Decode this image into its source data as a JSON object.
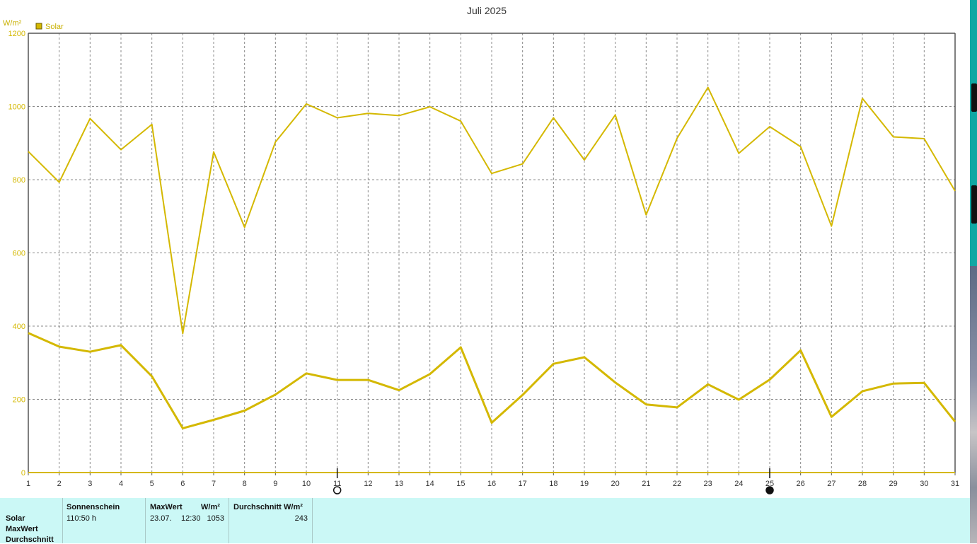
{
  "chart_data": {
    "type": "line",
    "title": "Juli 2025",
    "ylabel": "W/m²",
    "legend": {
      "label": "Solar",
      "color": "#d4b800",
      "position": "top-left"
    },
    "ylim": [
      0,
      1200
    ],
    "yticks": [
      0,
      200,
      400,
      600,
      800,
      1000,
      1200
    ],
    "x": [
      1,
      2,
      3,
      4,
      5,
      6,
      7,
      8,
      9,
      10,
      11,
      12,
      13,
      14,
      15,
      16,
      17,
      18,
      19,
      20,
      21,
      22,
      23,
      24,
      25,
      26,
      27,
      28,
      29,
      30,
      31
    ],
    "xlim": [
      1,
      31
    ],
    "grid": true,
    "moon_phases": [
      {
        "day": 11,
        "phase": "full"
      },
      {
        "day": 25,
        "phase": "new"
      }
    ],
    "series": [
      {
        "role": "daily-max",
        "values": [
          877,
          793,
          967,
          882,
          951,
          380,
          876,
          670,
          903,
          1007,
          969,
          981,
          975,
          999,
          960,
          817,
          843,
          969,
          854,
          977,
          704,
          913,
          1052,
          872,
          945,
          890,
          673,
          1022,
          917,
          912,
          769
        ]
      },
      {
        "role": "daily-mean",
        "values": [
          381,
          344,
          330,
          348,
          263,
          121,
          144,
          169,
          213,
          271,
          253,
          253,
          225,
          269,
          342,
          136,
          212,
          297,
          315,
          246,
          186,
          178,
          241,
          199,
          254,
          334,
          152,
          222,
          243,
          245,
          139
        ]
      }
    ]
  },
  "table": {
    "headers": {
      "sunshine": "Sonnenschein",
      "maxwert": "MaxWert",
      "maxwert_unit": "W/m²",
      "durchschnitt": "Durchschnitt",
      "durchschnitt_unit": "W/m²"
    },
    "rows": {
      "solar": "Solar",
      "maxwert": "MaxWert",
      "durchschnitt": "Durchschnitt"
    },
    "values": {
      "sunshine": "110:50 h",
      "max_date": "23.07.",
      "max_time": "12:30",
      "max_value": "1053",
      "average": "243"
    }
  },
  "colors": {
    "line": "#d4b800",
    "axis": "#555555",
    "grid": "#888888",
    "panel": "#cbf8f6"
  }
}
